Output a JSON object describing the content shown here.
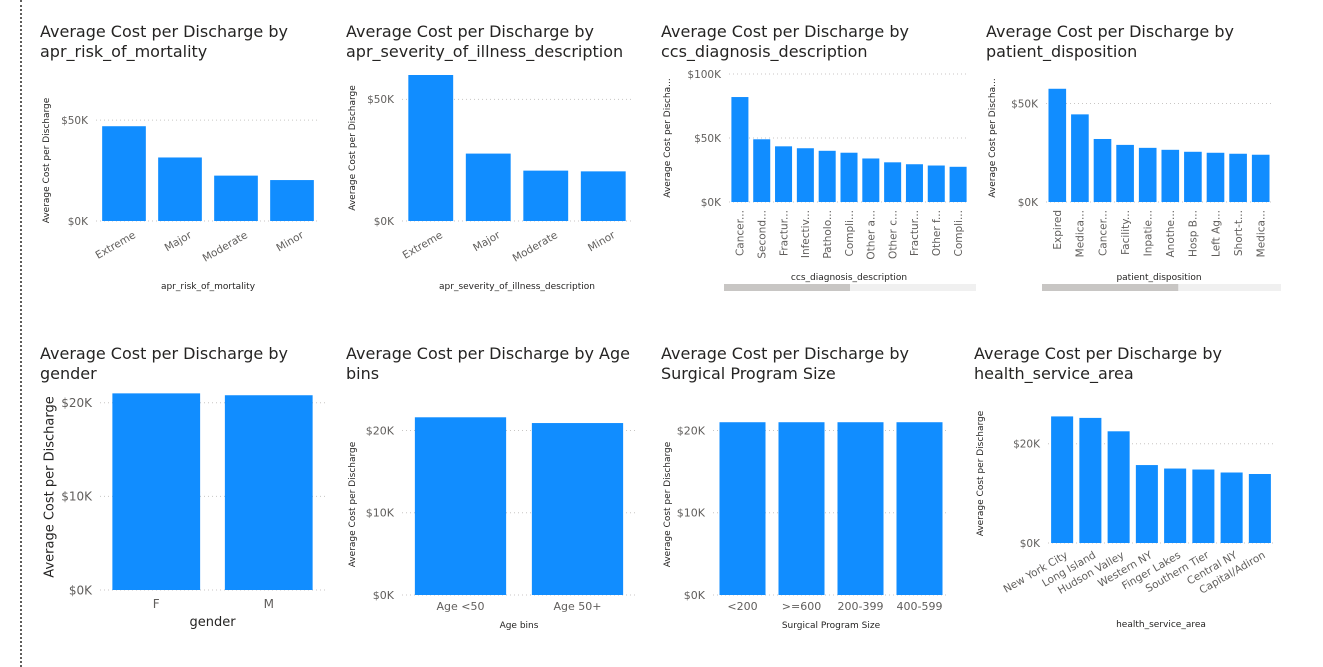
{
  "colors": {
    "bar": "#118DFF",
    "grid": "#c8c6c4",
    "tick_text": "#605e5c",
    "axis_title": "#252423",
    "scrollbar_track": "#f0f0f0",
    "scrollbar_thumb": "#c8c6c4"
  },
  "chart_data": [
    {
      "type": "bar",
      "title": "Average Cost per Discharge by apr_risk_of_mortality",
      "xlabel": "apr_risk_of_mortality",
      "ylabel": "Average Cost per Discharge",
      "categories": [
        "Extreme",
        "Major",
        "Moderate",
        "Minor"
      ],
      "values": [
        47000,
        31500,
        22500,
        20300
      ],
      "ylim": [
        0,
        60000
      ],
      "yticks": [
        0,
        50000
      ],
      "ytick_labels": [
        "$0K",
        "$50K"
      ],
      "grid": true,
      "xtick_rotation": -30
    },
    {
      "type": "bar",
      "title": "Average Cost per Discharge by apr_severity_of_illness_description",
      "xlabel": "apr_severity_of_illness_description",
      "ylabel": "Average Cost per Discharge",
      "categories": [
        "Extreme",
        "Major",
        "Moderate",
        "Minor"
      ],
      "values": [
        60000,
        27700,
        20700,
        20400
      ],
      "ylim": [
        0,
        60000
      ],
      "yticks": [
        0,
        50000
      ],
      "ytick_labels": [
        "$0K",
        "$50K"
      ],
      "grid": true,
      "xtick_rotation": -30
    },
    {
      "type": "bar",
      "title": "Average Cost per Discharge by ccs_diagnosis_description",
      "xlabel": "ccs_diagnosis_description",
      "ylabel": "Average Cost per Discha...",
      "categories": [
        "Cancer...",
        "Second...",
        "Fractur...",
        "Infectiv...",
        "Patholo...",
        "Compli...",
        "Other a...",
        "Other c...",
        "Fractur...",
        "Other f...",
        "Compli..."
      ],
      "values": [
        82000,
        49000,
        43500,
        42000,
        40000,
        38500,
        34000,
        31000,
        29500,
        28500,
        27500
      ],
      "ylim": [
        0,
        100000
      ],
      "yticks": [
        0,
        50000,
        100000
      ],
      "ytick_labels": [
        "$0K",
        "$50K",
        "$100K"
      ],
      "grid": true,
      "xtick_rotation": -90,
      "scrollbar": true,
      "scroll_fraction": 0.5
    },
    {
      "type": "bar",
      "title": "Average Cost per Discharge by patient_disposition",
      "xlabel": "patient_disposition",
      "ylabel": "Average Cost per Discha...",
      "categories": [
        "Expired",
        "Medica...",
        "Cancer...",
        "Facility...",
        "Inpatie...",
        "Anothe...",
        "Hosp B...",
        "Left Ag...",
        "Short-t...",
        "Medica..."
      ],
      "values": [
        57500,
        44500,
        32000,
        29000,
        27500,
        26500,
        25500,
        25000,
        24500,
        24000
      ],
      "ylim": [
        0,
        65000
      ],
      "yticks": [
        0,
        50000
      ],
      "ytick_labels": [
        "$0K",
        "$50K"
      ],
      "grid": true,
      "xtick_rotation": -90,
      "scrollbar": true,
      "scroll_fraction": 0.57
    },
    {
      "type": "bar",
      "title": "Average Cost per Discharge by gender",
      "xlabel": "gender",
      "ylabel": "Average Cost per Discharge",
      "categories": [
        "F",
        "M"
      ],
      "values": [
        21000,
        20800
      ],
      "ylim": [
        0,
        22000
      ],
      "yticks": [
        0,
        10000,
        20000
      ],
      "ytick_labels": [
        "$0K",
        "$10K",
        "$20K"
      ],
      "grid": true,
      "xtick_rotation": 0
    },
    {
      "type": "bar",
      "title": "Average Cost per Discharge by Age bins",
      "xlabel": "Age bins",
      "ylabel": "Average Cost per Discharge",
      "categories": [
        "Age <50",
        "Age 50+"
      ],
      "values": [
        21600,
        20900
      ],
      "ylim": [
        0,
        22000
      ],
      "yticks": [
        0,
        10000,
        20000
      ],
      "ytick_labels": [
        "$0K",
        "$10K",
        "$20K"
      ],
      "grid": true,
      "xtick_rotation": 0
    },
    {
      "type": "bar",
      "title": "Average Cost per Discharge by Surgical Program Size",
      "xlabel": "Surgical Program Size",
      "ylabel": "Average Cost per Discharge",
      "categories": [
        "<200",
        ">=600",
        "200-399",
        "400-599"
      ],
      "values": [
        21000,
        21000,
        21000,
        21000
      ],
      "ylim": [
        0,
        22000
      ],
      "yticks": [
        0,
        10000,
        20000
      ],
      "ytick_labels": [
        "$0K",
        "$10K",
        "$20K"
      ],
      "grid": true,
      "xtick_rotation": 0
    },
    {
      "type": "bar",
      "title": "Average Cost per Discharge by health_service_area",
      "xlabel": "health_service_area",
      "ylabel": "Average Cost per Discharge",
      "categories": [
        "New York City",
        "Long Island",
        "Hudson Valley",
        "Western NY",
        "Finger Lakes",
        "Southern Tier",
        "Central NY",
        "Capital/Adiron"
      ],
      "values": [
        25500,
        25200,
        22500,
        15700,
        15000,
        14800,
        14200,
        13900
      ],
      "ylim": [
        0,
        28000
      ],
      "yticks": [
        0,
        20000
      ],
      "ytick_labels": [
        "$0K",
        "$20K"
      ],
      "grid": true,
      "xtick_rotation": -30
    }
  ]
}
